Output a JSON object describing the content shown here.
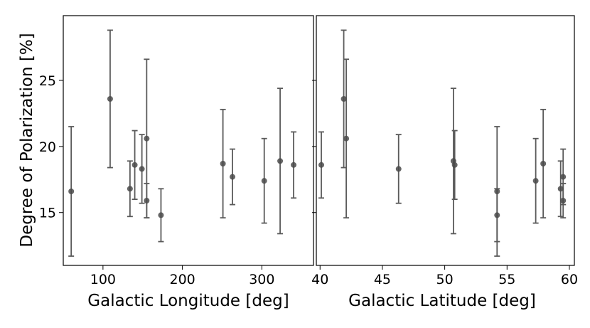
{
  "chart_data": [
    {
      "type": "scatter",
      "title": "",
      "xlabel": "Galactic Longitude [deg]",
      "ylabel": "Degree of Polarization [%]",
      "xlim": [
        50,
        365
      ],
      "ylim": [
        11,
        29.9
      ],
      "xticks": [
        100,
        200,
        300
      ],
      "yticks": [
        15,
        20,
        25
      ],
      "grid": false,
      "error_bars": true,
      "color": "#4a4a4a",
      "points": [
        {
          "x": 60,
          "y": 16.6,
          "yerr_low": 4.9,
          "yerr_high": 4.9
        },
        {
          "x": 109,
          "y": 23.6,
          "yerr_low": 5.2,
          "yerr_high": 5.2
        },
        {
          "x": 134,
          "y": 16.8,
          "yerr_low": 2.1,
          "yerr_high": 2.1
        },
        {
          "x": 140,
          "y": 18.6,
          "yerr_low": 2.6,
          "yerr_high": 2.6
        },
        {
          "x": 149,
          "y": 18.3,
          "yerr_low": 2.6,
          "yerr_high": 2.6
        },
        {
          "x": 155,
          "y": 20.6,
          "yerr_low": 6.0,
          "yerr_high": 6.0
        },
        {
          "x": 155,
          "y": 15.9,
          "yerr_low": 1.3,
          "yerr_high": 1.3
        },
        {
          "x": 173,
          "y": 14.8,
          "yerr_low": 2.0,
          "yerr_high": 2.0
        },
        {
          "x": 251,
          "y": 18.7,
          "yerr_low": 4.1,
          "yerr_high": 4.1
        },
        {
          "x": 263,
          "y": 17.7,
          "yerr_low": 2.1,
          "yerr_high": 2.1
        },
        {
          "x": 303,
          "y": 17.4,
          "yerr_low": 3.2,
          "yerr_high": 3.2
        },
        {
          "x": 323,
          "y": 18.9,
          "yerr_low": 5.5,
          "yerr_high": 5.5
        },
        {
          "x": 340,
          "y": 18.6,
          "yerr_low": 2.5,
          "yerr_high": 2.5
        }
      ]
    },
    {
      "type": "scatter",
      "title": "",
      "xlabel": "Galactic Latitude [deg]",
      "ylabel": "",
      "xlim": [
        39.7,
        60.4
      ],
      "ylim": [
        11,
        29.9
      ],
      "xticks": [
        40,
        45,
        50,
        55,
        60
      ],
      "yticks": [
        15,
        20,
        25
      ],
      "grid": false,
      "error_bars": true,
      "color": "#4a4a4a",
      "points": [
        {
          "x": 40.1,
          "y": 18.6,
          "yerr_low": 2.5,
          "yerr_high": 2.5
        },
        {
          "x": 41.9,
          "y": 23.6,
          "yerr_low": 5.2,
          "yerr_high": 5.2
        },
        {
          "x": 42.1,
          "y": 20.6,
          "yerr_low": 6.0,
          "yerr_high": 6.0
        },
        {
          "x": 46.3,
          "y": 18.3,
          "yerr_low": 2.6,
          "yerr_high": 2.6
        },
        {
          "x": 50.7,
          "y": 18.9,
          "yerr_low": 5.5,
          "yerr_high": 5.5
        },
        {
          "x": 50.8,
          "y": 18.6,
          "yerr_low": 2.6,
          "yerr_high": 2.6
        },
        {
          "x": 54.2,
          "y": 16.6,
          "yerr_low": 4.9,
          "yerr_high": 4.9
        },
        {
          "x": 54.2,
          "y": 14.8,
          "yerr_low": 2.0,
          "yerr_high": 2.0
        },
        {
          "x": 57.3,
          "y": 17.4,
          "yerr_low": 3.2,
          "yerr_high": 3.2
        },
        {
          "x": 57.9,
          "y": 18.7,
          "yerr_low": 4.1,
          "yerr_high": 4.1
        },
        {
          "x": 59.3,
          "y": 16.8,
          "yerr_low": 2.1,
          "yerr_high": 2.1
        },
        {
          "x": 59.5,
          "y": 17.7,
          "yerr_low": 2.1,
          "yerr_high": 2.1
        },
        {
          "x": 59.5,
          "y": 15.9,
          "yerr_low": 1.3,
          "yerr_high": 1.3
        }
      ]
    }
  ]
}
